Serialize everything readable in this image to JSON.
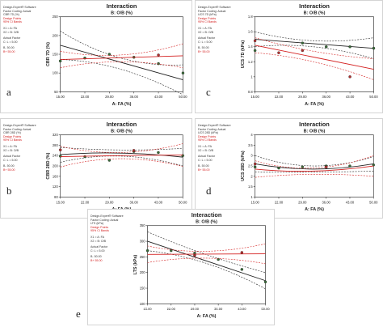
{
  "legend_text": {
    "l1": "Design-Expert® Software",
    "l2": "Factor Coding: Actual",
    "design_points": "Design Points",
    "ci": "95% CI Bands",
    "x1": "X1 = A: FA",
    "x2": "X2 = B: O/B",
    "actual": "Actual Factor",
    "b_low": "B- 50.00",
    "b_high": "B+ 55.00"
  },
  "colors": {
    "low_series": "#222222",
    "high_series": "#d42020"
  },
  "chart_data": [
    {
      "panel": "a",
      "type": "line",
      "title": "Interaction",
      "subtitle": "B: O/B (%)",
      "response": "CBR 7D (%)",
      "response_legend": "CBR 7D (%)",
      "factor": "C: L = 5.00",
      "xlabel": "A: FA (%)",
      "ylabel": "CBR 7D (%)",
      "xticks": [
        "15.00",
        "22.00",
        "29.00",
        "36.00",
        "43.00",
        "50.00"
      ],
      "yticks": [
        "50",
        "100",
        "150",
        "200",
        "250"
      ],
      "xlim": [
        15,
        50
      ],
      "ylim": [
        50,
        250
      ],
      "series": [
        {
          "name": "B- 50.00",
          "color": "low",
          "fit": [
            [
              15,
              174
            ],
            [
              50,
              82
            ]
          ],
          "ci_upper": [
            [
              15,
              212
            ],
            [
              32,
              140
            ],
            [
              50,
              122
            ]
          ],
          "ci_lower": [
            [
              15,
              136
            ],
            [
              32,
              110
            ],
            [
              50,
              42
            ]
          ],
          "points": [
            [
              15,
              132
            ],
            [
              22,
              140
            ],
            [
              29,
              150
            ],
            [
              36,
              142
            ],
            [
              43,
              125
            ],
            [
              50,
              100
            ]
          ]
        },
        {
          "name": "B+ 55.00",
          "color": "high",
          "fit": [
            [
              15,
              136
            ],
            [
              50,
              146
            ]
          ],
          "ci_upper": [
            [
              15,
              158
            ],
            [
              32,
              148
            ],
            [
              50,
              178
            ]
          ],
          "ci_lower": [
            [
              15,
              114
            ],
            [
              32,
              130
            ],
            [
              50,
              114
            ]
          ],
          "points": [
            [
              43,
              148
            ]
          ]
        }
      ]
    },
    {
      "panel": "c",
      "type": "line",
      "title": "Interaction",
      "subtitle": "B: O/B (%)",
      "response": "UCS 7D (kPa)",
      "response_legend": "UCS 7D (kPa)",
      "factor": "C: L = 5.00",
      "xlabel": "A: FA (%)",
      "ylabel": "UCS 7D (kPa)",
      "xticks": [
        "15.00",
        "22.00",
        "29.00",
        "36.00",
        "43.00",
        "50.00"
      ],
      "yticks": [
        "0.8",
        "1",
        "1.2",
        "1.4",
        "1.6",
        "1.8"
      ],
      "xlim": [
        15,
        50
      ],
      "ylim": [
        0.8,
        1.8
      ],
      "series": [
        {
          "name": "B- 50.00",
          "color": "low",
          "fit": [
            [
              15,
              1.5
            ],
            [
              50,
              1.38
            ]
          ],
          "ci_upper": [
            [
              15,
              1.6
            ],
            [
              32,
              1.48
            ],
            [
              50,
              1.52
            ]
          ],
          "ci_lower": [
            [
              15,
              1.4
            ],
            [
              32,
              1.4
            ],
            [
              50,
              1.24
            ]
          ],
          "points": [
            [
              15,
              1.35
            ],
            [
              29,
              1.45
            ],
            [
              36,
              1.4
            ],
            [
              43,
              1.4
            ],
            [
              50,
              1.38
            ]
          ]
        },
        {
          "name": "B+ 55.00",
          "color": "high",
          "fit": [
            [
              15,
              1.42
            ],
            [
              50,
              1.1
            ]
          ],
          "ci_upper": [
            [
              15,
              1.52
            ],
            [
              32,
              1.34
            ],
            [
              50,
              1.24
            ]
          ],
          "ci_lower": [
            [
              15,
              1.32
            ],
            [
              32,
              1.2
            ],
            [
              50,
              0.96
            ]
          ],
          "points": [
            [
              15,
              1.48
            ],
            [
              22,
              1.32
            ],
            [
              29,
              1.35
            ],
            [
              43,
              1.0
            ]
          ]
        }
      ]
    },
    {
      "panel": "b",
      "type": "line",
      "title": "Interaction",
      "subtitle": "B: O/B (%)",
      "response": "CBR 28D (%)",
      "response_legend": "CBR 28D (%)",
      "factor": "C: L = 5.00",
      "xlabel": "A: FA (%)",
      "ylabel": "CBR 28D (%)",
      "xticks": [
        "15.00",
        "22.00",
        "29.00",
        "36.00",
        "43.00",
        "50.00"
      ],
      "yticks": [
        "80",
        "120",
        "160",
        "200",
        "240",
        "280",
        "320"
      ],
      "xlim": [
        15,
        50
      ],
      "ylim": [
        80,
        320
      ],
      "series": [
        {
          "name": "B- 50.00",
          "color": "low",
          "fit": [
            [
              15,
              244
            ],
            [
              32,
              250
            ],
            [
              50,
              234
            ]
          ],
          "ci_upper": [
            [
              15,
              272
            ],
            [
              32,
              262
            ],
            [
              50,
              268
            ]
          ],
          "ci_lower": [
            [
              15,
              214
            ],
            [
              32,
              238
            ],
            [
              50,
              200
            ]
          ],
          "points": [
            [
              15,
              238
            ],
            [
              22,
              236
            ],
            [
              29,
              222
            ],
            [
              36,
              256
            ],
            [
              43,
              252
            ],
            [
              50,
              240
            ]
          ]
        },
        {
          "name": "B+ 55.00",
          "color": "high",
          "fit": [
            [
              15,
              236
            ],
            [
              32,
              240
            ],
            [
              50,
              242
            ]
          ],
          "ci_upper": [
            [
              15,
              276
            ],
            [
              32,
              252
            ],
            [
              50,
              286
            ]
          ],
          "ci_lower": [
            [
              15,
              196
            ],
            [
              32,
              228
            ],
            [
              50,
              198
            ]
          ],
          "points": [
            [
              15,
              262
            ],
            [
              36,
              260
            ]
          ]
        }
      ]
    },
    {
      "panel": "d",
      "type": "line",
      "title": "Interaction",
      "subtitle": "B: O/B (%)",
      "response": "UCS 28D (kPa)",
      "response_legend": "UCS 28D (kPa)",
      "factor": "C: L = 5.00",
      "xlabel": "A: FA (%)",
      "ylabel": "UCS 28D (kPa)",
      "xticks": [
        "15.00",
        "22.00",
        "29.00",
        "36.00",
        "43.00",
        "50.00"
      ],
      "yticks": [
        "1",
        "1.5",
        "2",
        "2.5",
        "3",
        "3.5",
        "4"
      ],
      "xlim": [
        15,
        50
      ],
      "ylim": [
        1,
        4
      ],
      "series": [
        {
          "name": "B- 50.00",
          "color": "low",
          "fit": [
            [
              15,
              2.6
            ],
            [
              32,
              2.35
            ],
            [
              50,
              2.6
            ]
          ],
          "ci_upper": [
            [
              15,
              3.0
            ],
            [
              32,
              2.5
            ],
            [
              50,
              2.95
            ]
          ],
          "ci_lower": [
            [
              15,
              2.2
            ],
            [
              32,
              2.2
            ],
            [
              50,
              2.25
            ]
          ],
          "points": [
            [
              15,
              2.45
            ],
            [
              22,
              2.4
            ],
            [
              29,
              2.45
            ],
            [
              36,
              2.5
            ],
            [
              43,
              2.5
            ],
            [
              50,
              2.55
            ]
          ]
        },
        {
          "name": "B+ 55.00",
          "color": "high",
          "fit": [
            [
              15,
              2.35
            ],
            [
              32,
              2.25
            ],
            [
              50,
              2.5
            ]
          ],
          "ci_upper": [
            [
              15,
              2.75
            ],
            [
              32,
              2.4
            ],
            [
              50,
              3.0
            ]
          ],
          "ci_lower": [
            [
              15,
              1.95
            ],
            [
              32,
              2.1
            ],
            [
              50,
              2.0
            ]
          ],
          "points": [
            [
              15,
              2.6
            ],
            [
              36,
              2.45
            ]
          ]
        }
      ]
    },
    {
      "panel": "e",
      "type": "line",
      "title": "Interaction",
      "subtitle": "B: O/B (%)",
      "response": "LTS (kPa)",
      "response_legend": "LTS (kPa)",
      "factor": "C: L = 5.00",
      "xlabel": "A: FA (%)",
      "ylabel": "LTS (kPa)",
      "xticks": [
        "15.00",
        "22.00",
        "29.00",
        "36.00",
        "43.00",
        "50.00"
      ],
      "yticks": [
        "100",
        "150",
        "200",
        "250",
        "300",
        "350"
      ],
      "xlim": [
        15,
        50
      ],
      "ylim": [
        100,
        350
      ],
      "series": [
        {
          "name": "B- 50.00",
          "color": "low",
          "fit": [
            [
              15,
              300
            ],
            [
              50,
              174
            ]
          ],
          "ci_upper": [
            [
              15,
              330
            ],
            [
              32,
              258
            ],
            [
              50,
              200
            ]
          ],
          "ci_lower": [
            [
              15,
              270
            ],
            [
              32,
              230
            ],
            [
              50,
              148
            ]
          ],
          "points": [
            [
              15,
              270
            ],
            [
              22,
              270
            ],
            [
              29,
              262
            ],
            [
              36,
              242
            ],
            [
              43,
              210
            ],
            [
              50,
              170
            ]
          ]
        },
        {
          "name": "B+ 55.00",
          "color": "high",
          "fit": [
            [
              15,
              258
            ],
            [
              50,
              260
            ]
          ],
          "ci_upper": [
            [
              15,
              285
            ],
            [
              32,
              268
            ],
            [
              50,
              292
            ]
          ],
          "ci_lower": [
            [
              15,
              232
            ],
            [
              32,
              246
            ],
            [
              50,
              228
            ]
          ],
          "points": [
            [
              29,
              255
            ],
            [
              43,
              264
            ]
          ]
        }
      ]
    }
  ]
}
